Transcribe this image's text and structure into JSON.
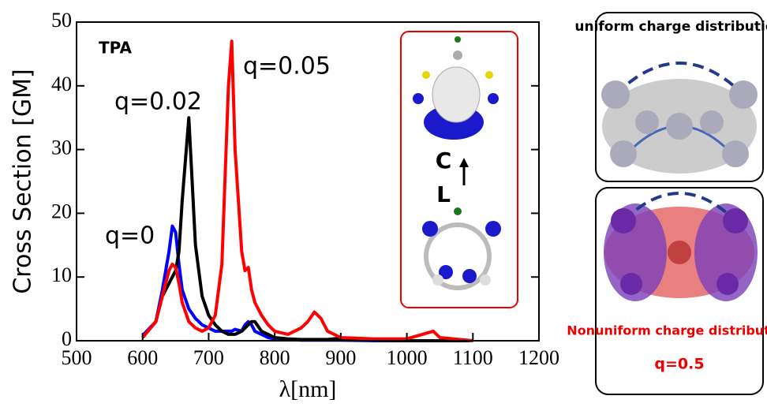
{
  "chart_data": {
    "type": "line",
    "ylabel": "Cross Section [GM]",
    "xlabel": "λ[nm]",
    "x": [
      600,
      620,
      630,
      640,
      645,
      650,
      655,
      660,
      670,
      680,
      690,
      700,
      710,
      720,
      730,
      735,
      740,
      750,
      755,
      760,
      765,
      770,
      780,
      790,
      800,
      820,
      840,
      850,
      860,
      870,
      880,
      900,
      950,
      1000,
      1040,
      1050,
      1100
    ],
    "series": [
      {
        "name": "q=0",
        "color": "#0000ff",
        "values": [
          0.8,
          3,
          8,
          14,
          18,
          17,
          12,
          8,
          5,
          3.5,
          2.5,
          2,
          1.5,
          1.5,
          1.5,
          1.5,
          1.8,
          1.5,
          2.5,
          3,
          2.5,
          1.5,
          1,
          0.5,
          0.3,
          0.2,
          0.1,
          0.1,
          0.1,
          0.1,
          0.1,
          0.1,
          0,
          0,
          0,
          0,
          0
        ]
      },
      {
        "name": "q=0.02",
        "color": "#000000",
        "values": [
          0.5,
          3,
          7,
          9,
          10,
          11,
          14,
          22,
          35,
          15,
          7,
          4,
          2.5,
          1.5,
          1,
          1,
          1,
          1.5,
          2,
          2.5,
          3,
          3,
          1.5,
          1,
          0.5,
          0.3,
          0.2,
          0.2,
          0.2,
          0.2,
          0.2,
          0.4,
          0.1,
          0,
          0,
          0,
          0
        ]
      },
      {
        "name": "q=0.05",
        "color": "#ff0000",
        "values": [
          0.5,
          3,
          7,
          11,
          12,
          11.5,
          9,
          6,
          3,
          2,
          1.5,
          2,
          4,
          12,
          40,
          47,
          30,
          14,
          11,
          11.5,
          8,
          6,
          4,
          2.5,
          1.5,
          1,
          2,
          3,
          4.5,
          3.5,
          1.5,
          0.5,
          0.3,
          0.3,
          1.5,
          0.5,
          0
        ]
      }
    ],
    "xlim": [
      500,
      1200
    ],
    "xticks": [
      500,
      600,
      700,
      800,
      900,
      1000,
      1100,
      1200
    ],
    "ylim": [
      0,
      50
    ],
    "yticks": [
      0,
      10,
      20,
      30,
      40,
      50
    ],
    "annotations": [
      "TPA",
      "C",
      "L"
    ]
  },
  "panels": {
    "top": "uniform charge distribution",
    "bottom": "Nonuniform charge distribution",
    "bottom_q": "q=0.5"
  }
}
